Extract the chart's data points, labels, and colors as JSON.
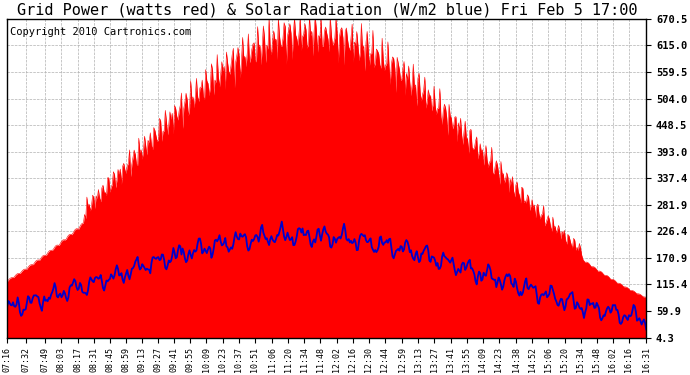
{
  "title": "Grid Power (watts red) & Solar Radiation (W/m2 blue) Fri Feb 5 17:00",
  "copyright": "Copyright 2010 Cartronics.com",
  "yticks": [
    4.3,
    59.9,
    115.4,
    170.9,
    226.4,
    281.9,
    337.4,
    393.0,
    448.5,
    504.0,
    559.5,
    615.0,
    670.5
  ],
  "xtick_labels": [
    "07:16",
    "07:32",
    "07:49",
    "08:03",
    "08:17",
    "08:31",
    "08:45",
    "08:59",
    "09:13",
    "09:27",
    "09:41",
    "09:55",
    "10:09",
    "10:23",
    "10:37",
    "10:51",
    "11:06",
    "11:20",
    "11:34",
    "11:48",
    "12:02",
    "12:16",
    "12:30",
    "12:44",
    "12:59",
    "13:13",
    "13:27",
    "13:41",
    "13:55",
    "14:09",
    "14:23",
    "14:38",
    "14:52",
    "15:06",
    "15:20",
    "15:34",
    "15:48",
    "16:02",
    "16:16",
    "16:31"
  ],
  "ymax": 670.5,
  "ymin": 4.3,
  "bg_color": "#ffffff",
  "grid_color": "#b0b0b0",
  "red_color": "#ff0000",
  "blue_color": "#0000cc",
  "title_fontsize": 11,
  "copyright_fontsize": 7.5
}
